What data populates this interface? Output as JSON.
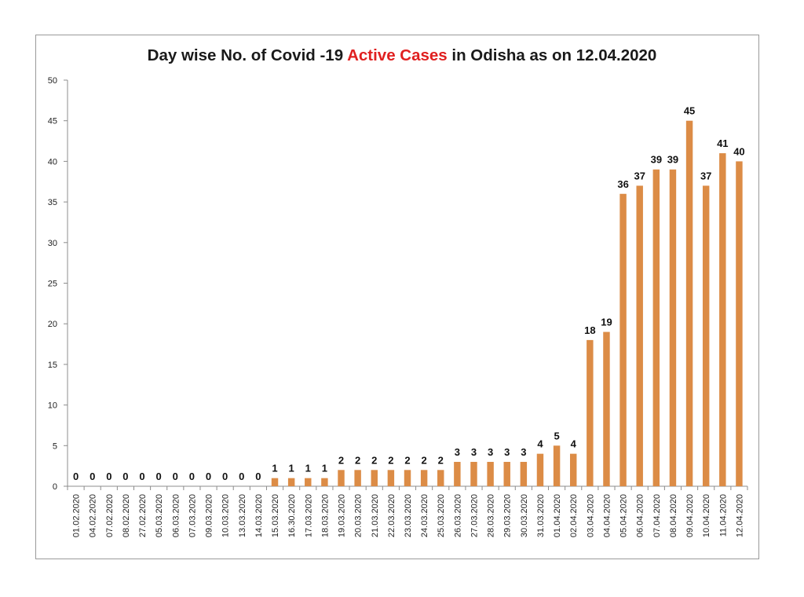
{
  "chart_data": {
    "type": "bar",
    "title_parts": {
      "before": "Day wise No. of Covid -19 ",
      "highlight": "Active Cases",
      "after": " in Odisha as on 12.04.2020"
    },
    "xlabel": "",
    "ylabel": "",
    "ylim": [
      0,
      50
    ],
    "yticks": [
      0,
      5,
      10,
      15,
      20,
      25,
      30,
      35,
      40,
      45,
      50
    ],
    "grid": false,
    "legend": "none",
    "bar_color": "#dc8c46",
    "highlight_color": "#e02020",
    "categories": [
      "01.02.2020",
      "04.02.2020",
      "07.02.2020",
      "08.02.2020",
      "27.02.2020",
      "05.03.2020",
      "06.03.2020",
      "07.03.2020",
      "09.03.2020",
      "10.03.2020",
      "13.03.2020",
      "14.03.2020",
      "15.03.2020",
      "16.30.2020",
      "17.03.2020",
      "18.03.2020",
      "19.03.2020",
      "20.03.2020",
      "21.03.2020",
      "22.03.2020",
      "23.03.2020",
      "24.03.2020",
      "25.03.2020",
      "26.03.2020",
      "27.03.2020",
      "28.03.2020",
      "29.03.2020",
      "30.03.2020",
      "31.03.2020",
      "01.04.2020",
      "02.04.2020",
      "03.04.2020",
      "04.04.2020",
      "05.04.2020",
      "06.04.2020",
      "07.04.2020",
      "08.04.2020",
      "09.04.2020",
      "10.04.2020",
      "11.04.2020",
      "12.04.2020"
    ],
    "values": [
      0,
      0,
      0,
      0,
      0,
      0,
      0,
      0,
      0,
      0,
      0,
      0,
      1,
      1,
      1,
      1,
      2,
      2,
      2,
      2,
      2,
      2,
      2,
      3,
      3,
      3,
      3,
      3,
      4,
      5,
      4,
      18,
      19,
      36,
      37,
      39,
      39,
      45,
      37,
      41,
      40
    ]
  }
}
